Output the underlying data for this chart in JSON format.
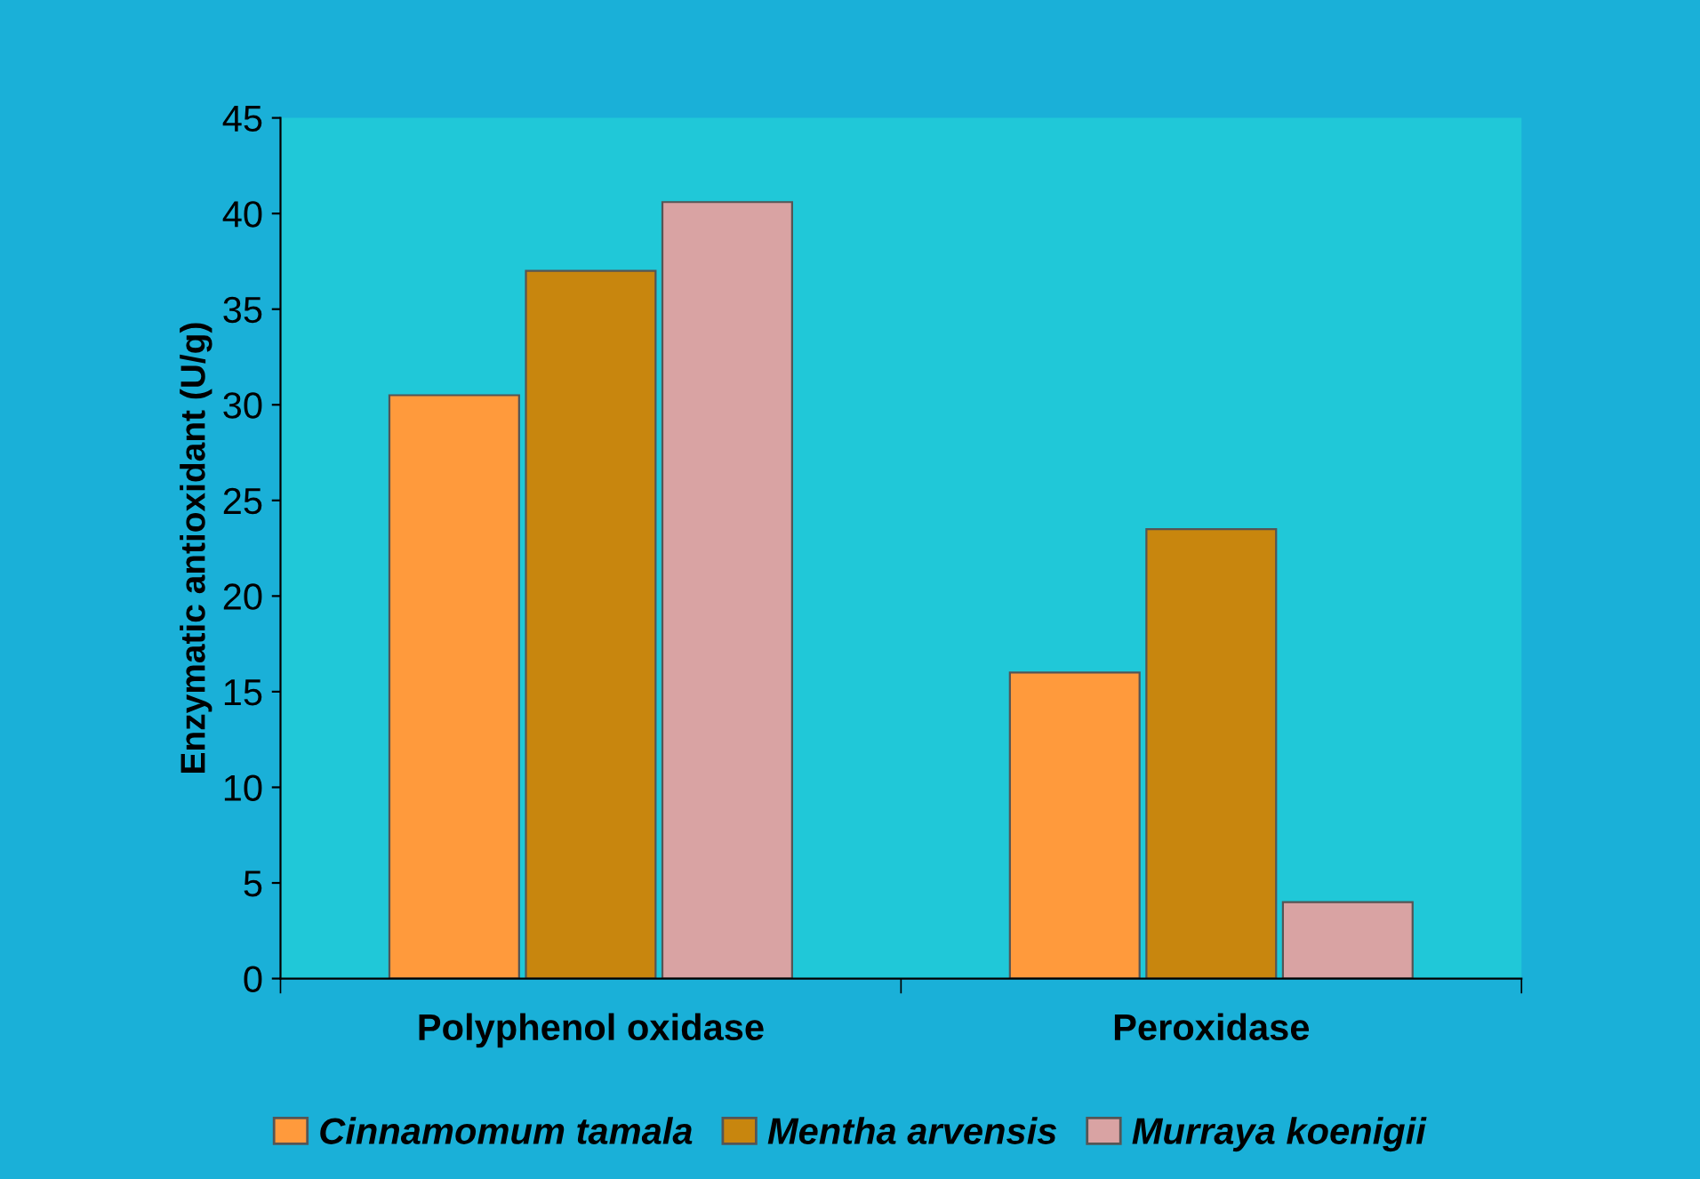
{
  "chart_data": {
    "type": "bar",
    "ylabel": "Enzymatic antioxidant (U/g)",
    "categories": [
      "Polyphenol oxidase",
      "Peroxidase"
    ],
    "series": [
      {
        "name": "Cinnamomum tamala",
        "color": "#ff9a3c",
        "values": [
          30.5,
          16.0
        ]
      },
      {
        "name": "Mentha arvensis",
        "color": "#c8860e",
        "values": [
          37.0,
          23.5
        ]
      },
      {
        "name": "Murraya koenigii",
        "color": "#d9a3a3",
        "values": [
          40.6,
          4.0
        ]
      }
    ],
    "ylim": [
      0,
      45
    ],
    "yticks": [
      0,
      5,
      10,
      15,
      20,
      25,
      30,
      35,
      40,
      45
    ],
    "grid": false,
    "legend": "bottom"
  }
}
